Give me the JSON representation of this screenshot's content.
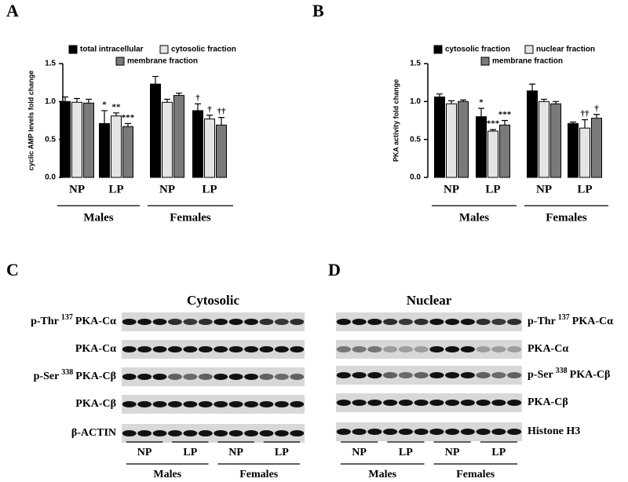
{
  "chart_data": [
    {
      "type": "bar",
      "panel": "A",
      "y_label": "cyclic AMP levels fold change",
      "categories": [
        "NP",
        "LP",
        "NP",
        "LP"
      ],
      "groups": [
        "Males",
        "Females"
      ],
      "ylim": [
        0,
        1.5
      ],
      "yticks": [
        {
          "value": 0,
          "label": "0.0"
        },
        0.5,
        {
          "value": 1,
          "label": "1.0"
        },
        1.5
      ],
      "series": [
        {
          "name": "total intracellular",
          "color": "#000000",
          "values": [
            1.0,
            0.71,
            1.23,
            0.88
          ],
          "errors": [
            0.06,
            0.17,
            0.1,
            0.09
          ],
          "significance": [
            null,
            "*",
            null,
            "†"
          ]
        },
        {
          "name": "cytosolic fraction",
          "color": "#e4e4e4",
          "values": [
            0.99,
            0.81,
            0.99,
            0.77
          ],
          "errors": [
            0.05,
            0.04,
            0.04,
            0.05
          ],
          "significance": [
            null,
            "**",
            null,
            "†"
          ]
        },
        {
          "name": "membrane fraction",
          "color": "#7a7a7a",
          "values": [
            0.98,
            0.67,
            1.08,
            0.69
          ],
          "errors": [
            0.05,
            0.04,
            0.03,
            0.1
          ],
          "significance": [
            null,
            "***",
            null,
            "††"
          ]
        }
      ]
    },
    {
      "type": "bar",
      "panel": "B",
      "y_label": "PKA activity fold change",
      "categories": [
        "NP",
        "LP",
        "NP",
        "LP"
      ],
      "groups": [
        "Males",
        "Females"
      ],
      "ylim": [
        0,
        1.5
      ],
      "yticks": [
        {
          "value": 0,
          "label": "0.0"
        },
        0.5,
        {
          "value": 1,
          "label": "1.0"
        },
        1.5
      ],
      "series": [
        {
          "name": "cytosolic fraction",
          "color": "#000000",
          "values": [
            1.06,
            0.8,
            1.14,
            0.71
          ],
          "errors": [
            0.04,
            0.11,
            0.09,
            0.02
          ],
          "significance": [
            null,
            "*",
            null,
            null
          ]
        },
        {
          "name": "nuclear fraction",
          "color": "#e4e4e4",
          "values": [
            0.97,
            0.61,
            1.0,
            0.65
          ],
          "errors": [
            0.04,
            0.02,
            0.03,
            0.11
          ],
          "significance": [
            null,
            "***",
            null,
            "††"
          ]
        },
        {
          "name": "membrane fraction",
          "color": "#7a7a7a",
          "values": [
            1.0,
            0.69,
            0.97,
            0.78
          ],
          "errors": [
            0.02,
            0.06,
            0.03,
            0.05
          ],
          "significance": [
            null,
            "***",
            null,
            "†"
          ]
        }
      ]
    }
  ],
  "blots": [
    {
      "panel": "C",
      "title": "Cytosolic",
      "lanes": [
        "NP",
        "LP",
        "NP",
        "LP"
      ],
      "groups": [
        "Males",
        "Females"
      ],
      "rows": [
        {
          "prefix": "p-Thr",
          "sup": "137",
          "name": "PKA-Cα"
        },
        {
          "name": "PKA-Cα"
        },
        {
          "prefix": "p-Ser",
          "sup": "338",
          "name": "PKA-Cβ"
        },
        {
          "name": "PKA-Cβ"
        },
        {
          "name": "β-ACTIN"
        }
      ]
    },
    {
      "panel": "D",
      "title": "Nuclear",
      "lanes": [
        "NP",
        "LP",
        "NP",
        "LP"
      ],
      "groups": [
        "Males",
        "Females"
      ],
      "rows": [
        {
          "prefix": "p-Thr",
          "sup": "137",
          "name": "PKA-Cα"
        },
        {
          "name": "PKA-Cα"
        },
        {
          "prefix": "p-Ser",
          "sup": "338",
          "name": "PKA-Cβ"
        },
        {
          "name": "PKA-Cβ"
        },
        {
          "name": "Histone H3"
        }
      ]
    }
  ]
}
